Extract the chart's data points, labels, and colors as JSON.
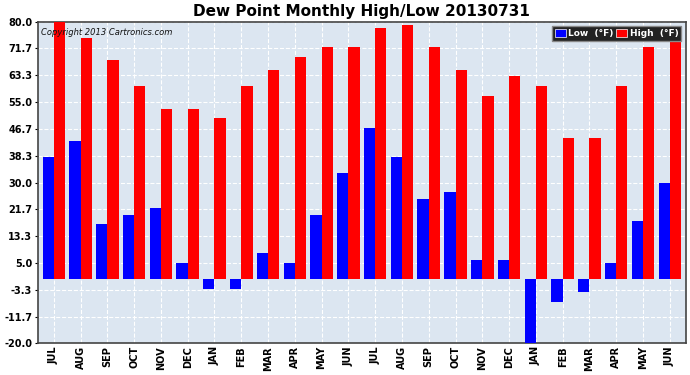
{
  "title": "Dew Point Monthly High/Low 20130731",
  "copyright": "Copyright 2013 Cartronics.com",
  "months": [
    "JUL",
    "AUG",
    "SEP",
    "OCT",
    "NOV",
    "DEC",
    "JAN",
    "FEB",
    "MAR",
    "APR",
    "MAY",
    "JUN",
    "JUL",
    "AUG",
    "SEP",
    "OCT",
    "NOV",
    "DEC",
    "JAN",
    "FEB",
    "MAR",
    "APR",
    "MAY",
    "JUN"
  ],
  "high": [
    80.0,
    75.0,
    68.0,
    60.0,
    53.0,
    53.0,
    50.0,
    60.0,
    65.0,
    69.0,
    72.0,
    72.0,
    78.0,
    79.0,
    72.0,
    65.0,
    57.0,
    63.0,
    60.0,
    44.0,
    44.0,
    60.0,
    72.0,
    75.0
  ],
  "low": [
    38.0,
    43.0,
    17.0,
    20.0,
    22.0,
    5.0,
    -3.0,
    -3.0,
    8.0,
    5.0,
    20.0,
    33.0,
    47.0,
    38.0,
    25.0,
    27.0,
    6.0,
    6.0,
    -20.0,
    -7.0,
    -4.0,
    5.0,
    18.0,
    30.0
  ],
  "high_color": "#ff0000",
  "low_color": "#0000ff",
  "bg_color": "#ffffff",
  "plot_bg": "#dce6f1",
  "grid_color": "#ffffff",
  "yticks": [
    -20.0,
    -11.7,
    -3.3,
    5.0,
    13.3,
    21.7,
    30.0,
    38.3,
    46.7,
    55.0,
    63.3,
    71.7,
    80.0
  ],
  "ylim": [
    -20.0,
    80.0
  ],
  "bar_width": 0.42,
  "title_fontsize": 11,
  "tick_fontsize": 7,
  "legend_labels": [
    "Low  (°F)",
    "High  (°F)"
  ]
}
